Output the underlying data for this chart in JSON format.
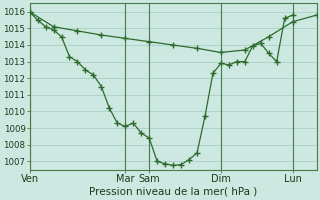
{
  "bg_color": "#cce8e0",
  "grid_color": "#a8cfc8",
  "line_color": "#2d6b2d",
  "vline_color": "#4a7a4a",
  "xlabel_text": "Pression niveau de la mer( hPa )",
  "ylim": [
    1006.5,
    1016.5
  ],
  "yticks": [
    1007,
    1008,
    1009,
    1010,
    1011,
    1012,
    1013,
    1014,
    1015,
    1016
  ],
  "xlim": [
    0,
    36
  ],
  "xtick_positions": [
    0,
    12,
    15,
    24,
    33
  ],
  "xtick_labels": [
    "Ven",
    "Mar",
    "Sam",
    "Dim",
    "Lun"
  ],
  "vline_positions": [
    0,
    12,
    15,
    24,
    33
  ],
  "line1_x": [
    0,
    3,
    6,
    9,
    12,
    15,
    18,
    21,
    24,
    27,
    30,
    33,
    36
  ],
  "line1_y": [
    1016.0,
    1015.1,
    1014.85,
    1014.6,
    1014.4,
    1014.2,
    1014.0,
    1013.8,
    1013.55,
    1013.7,
    1014.5,
    1015.4,
    1015.8
  ],
  "line2_x": [
    0,
    1,
    2,
    3,
    4,
    5,
    6,
    7,
    8,
    9,
    10,
    11,
    12,
    13,
    14,
    15,
    16,
    17,
    18,
    19,
    20,
    21,
    22,
    23,
    24,
    25,
    26,
    27,
    28,
    29,
    30,
    31,
    32,
    33
  ],
  "line2_y": [
    1016.0,
    1015.5,
    1015.1,
    1014.9,
    1014.5,
    1013.3,
    1013.0,
    1012.5,
    1012.2,
    1011.5,
    1010.2,
    1009.3,
    1009.1,
    1009.3,
    1008.7,
    1008.4,
    1007.0,
    1006.85,
    1006.75,
    1006.8,
    1007.1,
    1007.5,
    1009.7,
    1012.3,
    1012.9,
    1012.8,
    1013.0,
    1013.0,
    1013.95,
    1014.1,
    1013.5,
    1013.0,
    1015.6,
    1015.8
  ],
  "xlabel_fontsize": 7.5,
  "ytick_fontsize": 6.2,
  "xtick_fontsize": 7.0
}
